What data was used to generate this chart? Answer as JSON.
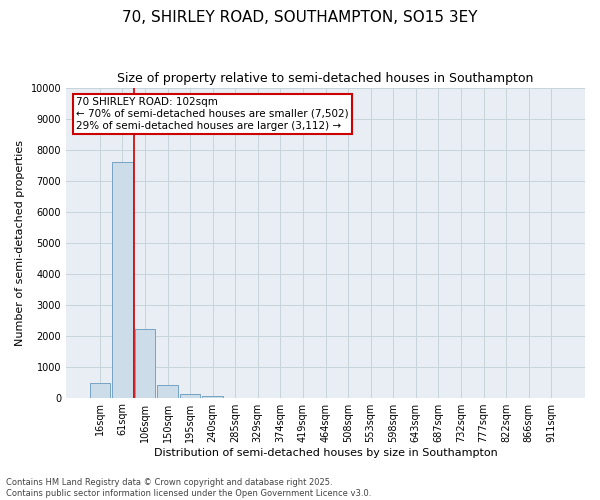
{
  "title_line1": "70, SHIRLEY ROAD, SOUTHAMPTON, SO15 3EY",
  "title_line2": "Size of property relative to semi-detached houses in Southampton",
  "xlabel": "Distribution of semi-detached houses by size in Southampton",
  "ylabel": "Number of semi-detached properties",
  "categories": [
    "16sqm",
    "61sqm",
    "106sqm",
    "150sqm",
    "195sqm",
    "240sqm",
    "285sqm",
    "329sqm",
    "374sqm",
    "419sqm",
    "464sqm",
    "508sqm",
    "553sqm",
    "598sqm",
    "643sqm",
    "687sqm",
    "732sqm",
    "777sqm",
    "822sqm",
    "866sqm",
    "911sqm"
  ],
  "values": [
    480,
    7600,
    2200,
    400,
    120,
    60,
    0,
    0,
    0,
    0,
    0,
    0,
    0,
    0,
    0,
    0,
    0,
    0,
    0,
    0,
    0
  ],
  "bar_color": "#ccdce8",
  "bar_edge_color": "#6699bb",
  "red_line_color": "#cc0000",
  "annotation_line1": "70 SHIRLEY ROAD: 102sqm",
  "annotation_line2": "← 70% of semi-detached houses are smaller (7,502)",
  "annotation_line3": "29% of semi-detached houses are larger (3,112) →",
  "annotation_box_color": "#ffffff",
  "annotation_box_edge_color": "#cc0000",
  "ylim": [
    0,
    10000
  ],
  "yticks": [
    0,
    1000,
    2000,
    3000,
    4000,
    5000,
    6000,
    7000,
    8000,
    9000,
    10000
  ],
  "background_color": "#ffffff",
  "plot_bg_color": "#e8eef4",
  "grid_color": "#c8d4dc",
  "footer_line1": "Contains HM Land Registry data © Crown copyright and database right 2025.",
  "footer_line2": "Contains public sector information licensed under the Open Government Licence v3.0.",
  "title_fontsize": 11,
  "subtitle_fontsize": 9,
  "axis_label_fontsize": 8,
  "tick_fontsize": 7,
  "annotation_fontsize": 7.5,
  "footer_fontsize": 6
}
